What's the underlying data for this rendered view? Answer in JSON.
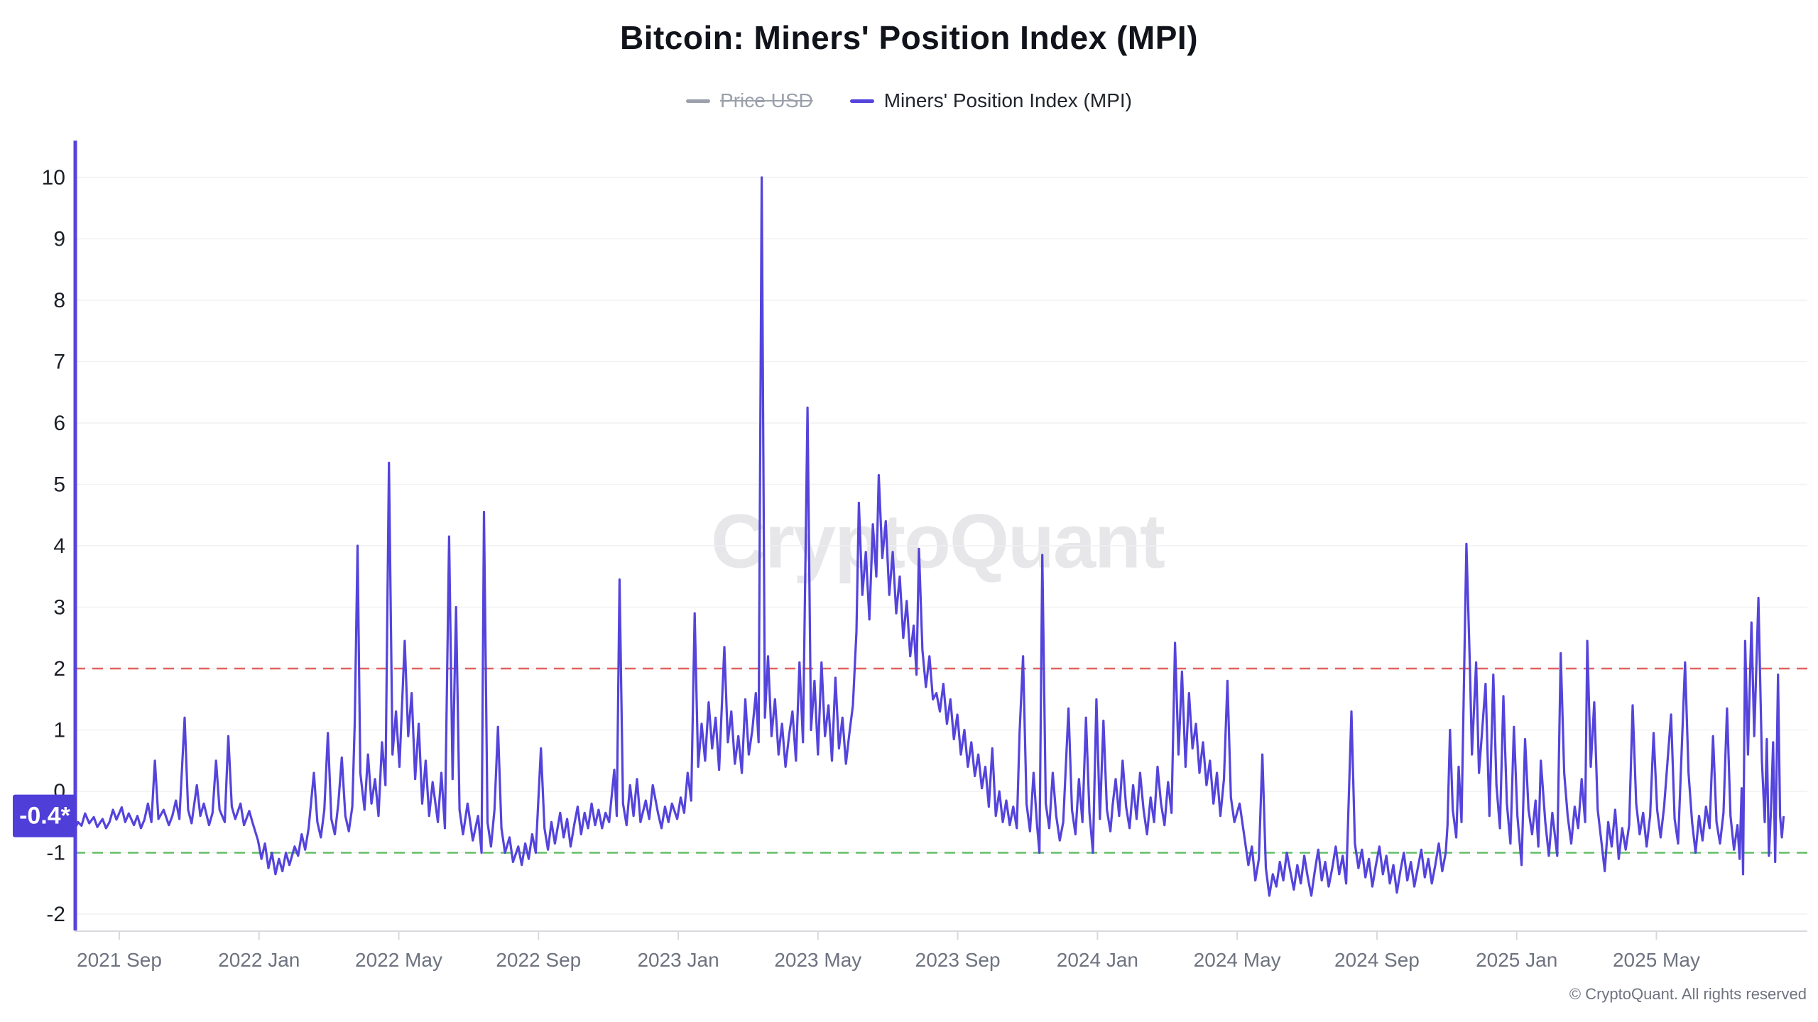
{
  "title": "Bitcoin: Miners' Position Index (MPI)",
  "watermark": "CryptoQuant",
  "footer": {
    "copyright": "© CryptoQuant. All rights reserved"
  },
  "legend": {
    "price_usd": {
      "label": "Price USD",
      "color": "#9ba0ab",
      "disabled": true
    },
    "mpi": {
      "label": "Miners' Position Index (MPI)",
      "color": "#5444dc",
      "disabled": false
    }
  },
  "current_value": {
    "label": "-0.4*",
    "value": -0.4
  },
  "colors": {
    "mpi_line": "#5444dc",
    "badge_bg": "#4f3fd8",
    "badge_text": "#ffffff",
    "upper_threshold": "#e0635e",
    "lower_threshold": "#63bd66",
    "grid": "#f1f1f4",
    "axis": "#d8d8dd",
    "x_label": "#6e7380",
    "y_label": "#1b1e26",
    "title": "#101319",
    "watermark": "#e7e7ea",
    "disabled_legend": "#9ba0ab"
  },
  "chart_data": {
    "type": "line",
    "title": "Bitcoin: Miners' Position Index (MPI)",
    "series_name": "Miners' Position Index (MPI)",
    "hidden_series": "Price USD",
    "legend_position": "top",
    "grid": true,
    "ylim": [
      -2.28,
      11.5
    ],
    "y_ticks": [
      -2,
      -1,
      0,
      1,
      2,
      3,
      4,
      5,
      6,
      7,
      8,
      9,
      10
    ],
    "x_tick_labels": [
      "2021 Sep",
      "2022 Jan",
      "2022 May",
      "2022 Sep",
      "2023 Jan",
      "2023 May",
      "2023 Sep",
      "2024 Jan",
      "2024 May",
      "2024 Sep",
      "2025 Jan",
      "2025 May"
    ],
    "x_tick_months": [
      1.28,
      5.28,
      9.28,
      13.28,
      17.28,
      21.28,
      25.28,
      29.28,
      33.28,
      37.28,
      41.28,
      45.28
    ],
    "x_range_months": 49.6,
    "x_unit": "months from chart start (x ticks every 4 months)",
    "reference_lines": [
      {
        "name": "upper-threshold",
        "value": 2,
        "color": "#e0635e",
        "style": "dashed"
      },
      {
        "name": "lower-threshold",
        "value": -1,
        "color": "#63bd66",
        "style": "dashed"
      }
    ],
    "latest_value": -0.4,
    "latest_value_label": "-0.4*",
    "start_edge_spike_top": 10.6,
    "points": [
      0,
      -0.62,
      0.1,
      -0.5,
      0.2,
      -0.56,
      0.3,
      -0.36,
      0.42,
      -0.52,
      0.55,
      -0.42,
      0.65,
      -0.58,
      0.8,
      -0.45,
      0.9,
      -0.6,
      1,
      -0.5,
      1.1,
      -0.3,
      1.2,
      -0.46,
      1.35,
      -0.26,
      1.45,
      -0.5,
      1.55,
      -0.36,
      1.7,
      -0.55,
      1.8,
      -0.4,
      1.9,
      -0.6,
      2,
      -0.46,
      2.1,
      -0.2,
      2.2,
      -0.5,
      2.3,
      0.5,
      2.4,
      -0.45,
      2.55,
      -0.3,
      2.7,
      -0.55,
      2.8,
      -0.4,
      2.9,
      -0.15,
      3,
      -0.45,
      3.15,
      1.2,
      3.25,
      -0.3,
      3.35,
      -0.52,
      3.5,
      0.1,
      3.6,
      -0.4,
      3.7,
      -0.2,
      3.85,
      -0.55,
      3.95,
      -0.35,
      4.05,
      0.5,
      4.15,
      -0.3,
      4.3,
      -0.5,
      4.4,
      0.9,
      4.5,
      -0.25,
      4.6,
      -0.45,
      4.75,
      -0.2,
      4.85,
      -0.55,
      5,
      -0.32,
      5.1,
      -0.52,
      5.25,
      -0.8,
      5.35,
      -1.1,
      5.45,
      -0.85,
      5.55,
      -1.25,
      5.65,
      -1,
      5.75,
      -1.35,
      5.85,
      -1.1,
      5.95,
      -1.3,
      6.05,
      -1,
      6.15,
      -1.2,
      6.3,
      -0.9,
      6.4,
      -1.05,
      6.5,
      -0.7,
      6.6,
      -0.95,
      6.7,
      -0.6,
      6.85,
      0.3,
      6.95,
      -0.5,
      7.05,
      -0.75,
      7.15,
      -0.3,
      7.25,
      0.95,
      7.35,
      -0.45,
      7.45,
      -0.7,
      7.55,
      -0.2,
      7.65,
      0.55,
      7.75,
      -0.4,
      7.85,
      -0.65,
      7.95,
      -0.25,
      8.02,
      1.1,
      8.1,
      4,
      8.18,
      0.3,
      8.3,
      -0.3,
      8.4,
      0.6,
      8.5,
      -0.2,
      8.6,
      0.2,
      8.7,
      -0.4,
      8.8,
      0.8,
      8.9,
      0.1,
      9,
      5.35,
      9.1,
      0.6,
      9.2,
      1.3,
      9.3,
      0.4,
      9.45,
      2.45,
      9.55,
      0.9,
      9.65,
      1.6,
      9.75,
      0.2,
      9.85,
      1.1,
      9.95,
      -0.2,
      10.05,
      0.5,
      10.15,
      -0.4,
      10.25,
      0.15,
      10.4,
      -0.5,
      10.5,
      0.3,
      10.6,
      -0.6,
      10.72,
      4.15,
      10.82,
      0.2,
      10.92,
      3,
      11.02,
      -0.3,
      11.12,
      -0.7,
      11.25,
      -0.2,
      11.4,
      -0.8,
      11.55,
      -0.4,
      11.65,
      -1,
      11.72,
      4.55,
      11.82,
      -0.5,
      11.92,
      -0.9,
      12.02,
      -0.3,
      12.12,
      1.05,
      12.22,
      -0.6,
      12.32,
      -1,
      12.45,
      -0.75,
      12.55,
      -1.15,
      12.7,
      -0.9,
      12.8,
      -1.2,
      12.9,
      -0.85,
      13,
      -1.1,
      13.1,
      -0.7,
      13.2,
      -1,
      13.35,
      0.7,
      13.45,
      -0.6,
      13.55,
      -0.95,
      13.65,
      -0.5,
      13.75,
      -0.85,
      13.9,
      -0.35,
      14,
      -0.75,
      14.1,
      -0.45,
      14.2,
      -0.9,
      14.3,
      -0.55,
      14.4,
      -0.25,
      14.5,
      -0.7,
      14.6,
      -0.35,
      14.7,
      -0.6,
      14.8,
      -0.2,
      14.9,
      -0.55,
      15,
      -0.3,
      15.1,
      -0.6,
      15.2,
      -0.35,
      15.3,
      -0.5,
      15.45,
      0.35,
      15.52,
      -0.4,
      15.6,
      3.45,
      15.7,
      -0.2,
      15.8,
      -0.55,
      15.9,
      0.1,
      16,
      -0.4,
      16.1,
      0.2,
      16.2,
      -0.5,
      16.35,
      -0.15,
      16.45,
      -0.45,
      16.55,
      0.1,
      16.7,
      -0.35,
      16.8,
      -0.6,
      16.9,
      -0.25,
      17,
      -0.5,
      17.1,
      -0.2,
      17.25,
      -0.45,
      17.35,
      -0.1,
      17.45,
      -0.35,
      17.55,
      0.3,
      17.65,
      -0.15,
      17.75,
      2.9,
      17.85,
      0.4,
      17.95,
      1.1,
      18.05,
      0.5,
      18.15,
      1.45,
      18.25,
      0.7,
      18.35,
      1.2,
      18.45,
      0.35,
      18.6,
      2.35,
      18.7,
      0.8,
      18.8,
      1.3,
      18.9,
      0.45,
      19,
      0.9,
      19.1,
      0.3,
      19.2,
      1.5,
      19.3,
      0.6,
      19.4,
      1,
      19.5,
      1.6,
      19.58,
      0.8,
      19.67,
      10,
      19.76,
      1.2,
      19.85,
      2.2,
      19.95,
      0.9,
      20.05,
      1.5,
      20.15,
      0.6,
      20.25,
      1.1,
      20.35,
      0.4,
      20.45,
      0.9,
      20.55,
      1.3,
      20.65,
      0.5,
      20.75,
      2.1,
      20.85,
      0.8,
      20.98,
      6.25,
      21.08,
      1,
      21.18,
      1.8,
      21.28,
      0.6,
      21.38,
      2.1,
      21.48,
      0.9,
      21.58,
      1.4,
      21.68,
      0.5,
      21.78,
      1.85,
      21.88,
      0.7,
      21.98,
      1.2,
      22.08,
      0.45,
      22.18,
      0.95,
      22.28,
      1.4,
      22.38,
      2.6,
      22.45,
      4.7,
      22.55,
      3.2,
      22.65,
      3.9,
      22.75,
      2.8,
      22.85,
      4.35,
      22.95,
      3.5,
      23.02,
      5.15,
      23.12,
      3.8,
      23.22,
      4.4,
      23.32,
      3.2,
      23.42,
      3.9,
      23.52,
      2.9,
      23.62,
      3.5,
      23.72,
      2.5,
      23.82,
      3.1,
      23.92,
      2.2,
      24.02,
      2.7,
      24.1,
      1.9,
      24.17,
      3.95,
      24.27,
      2.3,
      24.37,
      1.7,
      24.47,
      2.2,
      24.57,
      1.5,
      24.67,
      1.6,
      24.77,
      1.3,
      24.87,
      1.75,
      24.97,
      1.1,
      25.07,
      1.5,
      25.17,
      0.85,
      25.27,
      1.25,
      25.37,
      0.6,
      25.47,
      1,
      25.57,
      0.4,
      25.67,
      0.8,
      25.77,
      0.25,
      25.87,
      0.6,
      25.97,
      0.05,
      26.07,
      0.4,
      26.17,
      -0.25,
      26.27,
      0.7,
      26.37,
      -0.4,
      26.47,
      0,
      26.57,
      -0.5,
      26.67,
      -0.15,
      26.77,
      -0.55,
      26.87,
      -0.25,
      26.97,
      -0.6,
      27.05,
      0.95,
      27.15,
      2.2,
      27.25,
      -0.2,
      27.35,
      -0.65,
      27.45,
      0.3,
      27.55,
      -0.55,
      27.62,
      -1,
      27.7,
      3.85,
      27.8,
      -0.2,
      27.9,
      -0.6,
      28,
      0.3,
      28.1,
      -0.4,
      28.2,
      -0.8,
      28.3,
      -0.5,
      28.45,
      1.35,
      28.55,
      -0.3,
      28.65,
      -0.7,
      28.75,
      0.2,
      28.85,
      -0.5,
      28.95,
      1.2,
      29.05,
      -0.35,
      29.15,
      -1,
      29.25,
      1.5,
      29.35,
      -0.45,
      29.45,
      1.15,
      29.55,
      -0.3,
      29.65,
      -0.65,
      29.72,
      -0.2,
      29.8,
      0.2,
      29.9,
      -0.4,
      30,
      0.5,
      30.1,
      -0.25,
      30.2,
      -0.6,
      30.3,
      0.1,
      30.4,
      -0.45,
      30.5,
      0.3,
      30.6,
      -0.3,
      30.7,
      -0.7,
      30.8,
      -0.1,
      30.9,
      -0.5,
      31,
      0.4,
      31.1,
      -0.2,
      31.2,
      -0.55,
      31.3,
      0.15,
      31.4,
      -0.35,
      31.5,
      2.42,
      31.6,
      0.6,
      31.7,
      1.95,
      31.8,
      0.4,
      31.9,
      1.6,
      32,
      0.7,
      32.1,
      1.1,
      32.2,
      0.3,
      32.3,
      0.8,
      32.4,
      0.1,
      32.5,
      0.5,
      32.6,
      -0.2,
      32.7,
      0.3,
      32.8,
      -0.4,
      32.9,
      0.2,
      33,
      1.8,
      33.1,
      -0.1,
      33.2,
      -0.5,
      33.35,
      -0.2,
      33.5,
      -0.8,
      33.6,
      -1.2,
      33.7,
      -0.9,
      33.8,
      -1.45,
      33.9,
      -1.1,
      34,
      0.6,
      34.1,
      -1.25,
      34.2,
      -1.7,
      34.3,
      -1.35,
      34.4,
      -1.55,
      34.5,
      -1.15,
      34.6,
      -1.45,
      34.7,
      -1,
      34.8,
      -1.3,
      34.9,
      -1.6,
      35,
      -1.2,
      35.1,
      -1.5,
      35.2,
      -1.05,
      35.3,
      -1.4,
      35.4,
      -1.7,
      35.5,
      -1.3,
      35.6,
      -0.95,
      35.7,
      -1.45,
      35.8,
      -1.15,
      35.9,
      -1.55,
      36,
      -1.25,
      36.1,
      -0.9,
      36.2,
      -1.35,
      36.3,
      -1.05,
      36.4,
      -1.5,
      36.55,
      1.3,
      36.65,
      -0.85,
      36.75,
      -1.25,
      36.85,
      -0.95,
      36.95,
      -1.4,
      37.05,
      -1.1,
      37.15,
      -1.55,
      37.25,
      -1.2,
      37.35,
      -0.9,
      37.45,
      -1.35,
      37.55,
      -1.05,
      37.65,
      -1.5,
      37.75,
      -1.2,
      37.85,
      -1.65,
      37.95,
      -1.3,
      38.05,
      -1,
      38.15,
      -1.45,
      38.25,
      -1.15,
      38.35,
      -1.55,
      38.45,
      -1.25,
      38.55,
      -0.95,
      38.65,
      -1.4,
      38.75,
      -1.1,
      38.85,
      -1.5,
      38.95,
      -1.2,
      39.05,
      -0.85,
      39.15,
      -1.3,
      39.25,
      -1,
      39.3,
      -0.55,
      39.37,
      1,
      39.45,
      -0.3,
      39.55,
      -0.75,
      39.62,
      0.4,
      39.7,
      -0.5,
      39.84,
      4.03,
      39.94,
      2.05,
      40,
      0.6,
      40.12,
      2.1,
      40.2,
      0.3,
      40.28,
      0.9,
      40.39,
      1.75,
      40.5,
      -0.4,
      40.61,
      1.9,
      40.7,
      0.1,
      40.8,
      -0.6,
      40.9,
      1.55,
      41,
      -0.2,
      41.1,
      -0.85,
      41.2,
      1.05,
      41.3,
      -0.4,
      41.42,
      -1.2,
      41.52,
      0.85,
      41.62,
      -0.3,
      41.72,
      -0.7,
      41.82,
      -0.15,
      41.9,
      -0.9,
      41.97,
      0.5,
      42.1,
      -0.5,
      42.2,
      -1.05,
      42.3,
      -0.35,
      42.44,
      -1.05,
      42.54,
      2.25,
      42.64,
      0.3,
      42.74,
      -0.4,
      42.84,
      -0.85,
      42.94,
      -0.25,
      43.04,
      -0.6,
      43.14,
      0.2,
      43.24,
      -0.5,
      43.3,
      2.45,
      43.4,
      0.4,
      43.5,
      1.45,
      43.6,
      -0.3,
      43.7,
      -0.8,
      43.8,
      -1.3,
      43.9,
      -0.5,
      44,
      -0.9,
      44.1,
      -0.3,
      44.2,
      -1.1,
      44.3,
      -0.6,
      44.4,
      -0.95,
      44.5,
      -0.55,
      44.6,
      1.4,
      44.7,
      -0.2,
      44.8,
      -0.7,
      44.9,
      -0.35,
      45,
      -0.9,
      45.1,
      -0.4,
      45.2,
      0.95,
      45.3,
      -0.3,
      45.4,
      -0.75,
      45.5,
      -0.25,
      45.7,
      1.25,
      45.8,
      -0.45,
      45.9,
      -0.85,
      46.1,
      2.1,
      46.2,
      0.3,
      46.3,
      -0.5,
      46.4,
      -1,
      46.5,
      -0.4,
      46.6,
      -0.8,
      46.7,
      -0.25,
      46.8,
      -0.6,
      46.9,
      0.9,
      47,
      -0.5,
      47.1,
      -0.85,
      47.2,
      -0.35,
      47.3,
      1.35,
      47.4,
      -0.4,
      47.5,
      -0.95,
      47.6,
      -0.55,
      47.66,
      -1.1,
      47.72,
      0.05,
      47.76,
      -1.35,
      47.82,
      2.45,
      47.9,
      0.6,
      48,
      2.75,
      48.08,
      0.9,
      48.2,
      3.15,
      48.3,
      0.5,
      48.38,
      -0.5,
      48.44,
      0.85,
      48.5,
      -1.05,
      48.56,
      -0.3,
      48.62,
      0.8,
      48.68,
      -1.15,
      48.76,
      1.9,
      48.82,
      -0.4,
      48.87,
      -0.75,
      48.92,
      -0.42
    ]
  }
}
